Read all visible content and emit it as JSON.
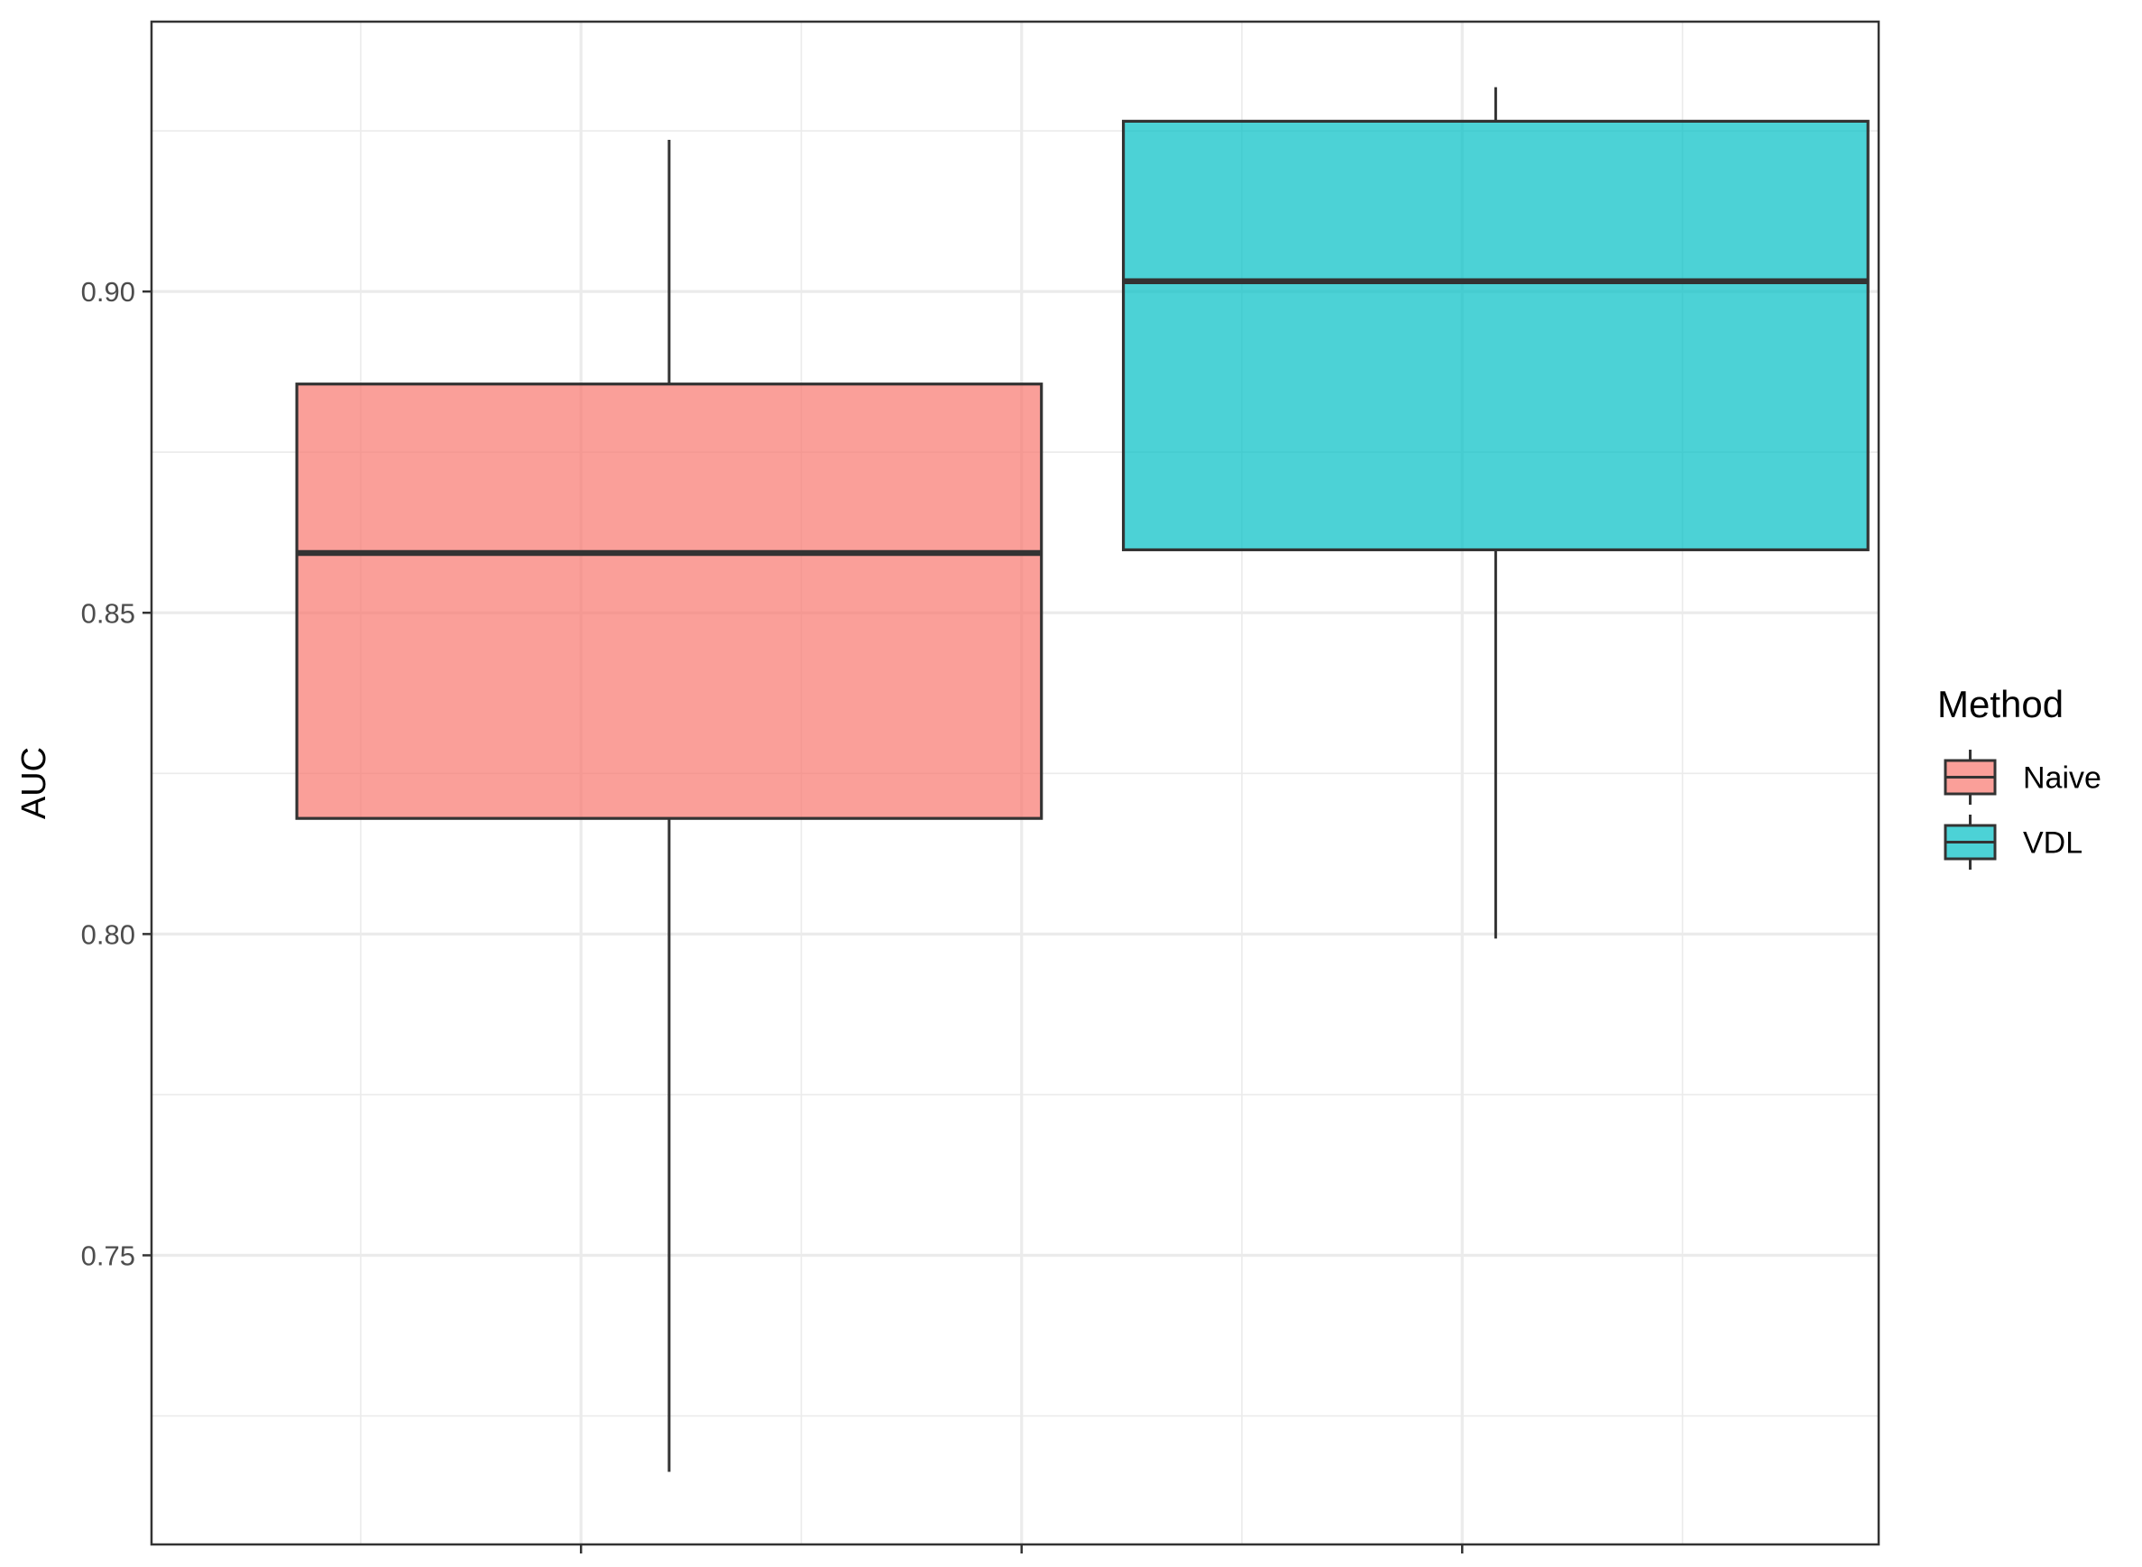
{
  "chart_data": {
    "type": "boxplot",
    "ylabel": "AUC",
    "xlabel": "",
    "ylim": [
      0.705,
      0.942
    ],
    "yticks": [
      0.75,
      0.8,
      0.85,
      0.9
    ],
    "ytick_labels": [
      "0.75",
      "0.80",
      "0.85",
      "0.90"
    ],
    "grid": true,
    "legend": {
      "title": "Method",
      "position": "right",
      "entries": [
        "Naive",
        "VDL"
      ]
    },
    "series": [
      {
        "name": "Naive",
        "color": "#F8766D",
        "x_center": 0.5,
        "x_width": 0.845,
        "whisker_low": 0.7163,
        "q1": 0.818,
        "median": 0.8593,
        "q3": 0.8856,
        "whisker_high": 0.9236
      },
      {
        "name": "VDL",
        "color": "#00BFC4",
        "x_center": 1.438,
        "x_width": 0.845,
        "whisker_low": 0.7993,
        "q1": 0.8598,
        "median": 0.9016,
        "q3": 0.9265,
        "whisker_high": 0.9318
      }
    ],
    "x_range": [
      -0.0874,
      1.8726
    ],
    "x_major_ticks": [
      0.4,
      0.9,
      1.4
    ],
    "x_minor_grid": [
      0.15,
      0.65,
      1.15,
      1.65
    ]
  }
}
